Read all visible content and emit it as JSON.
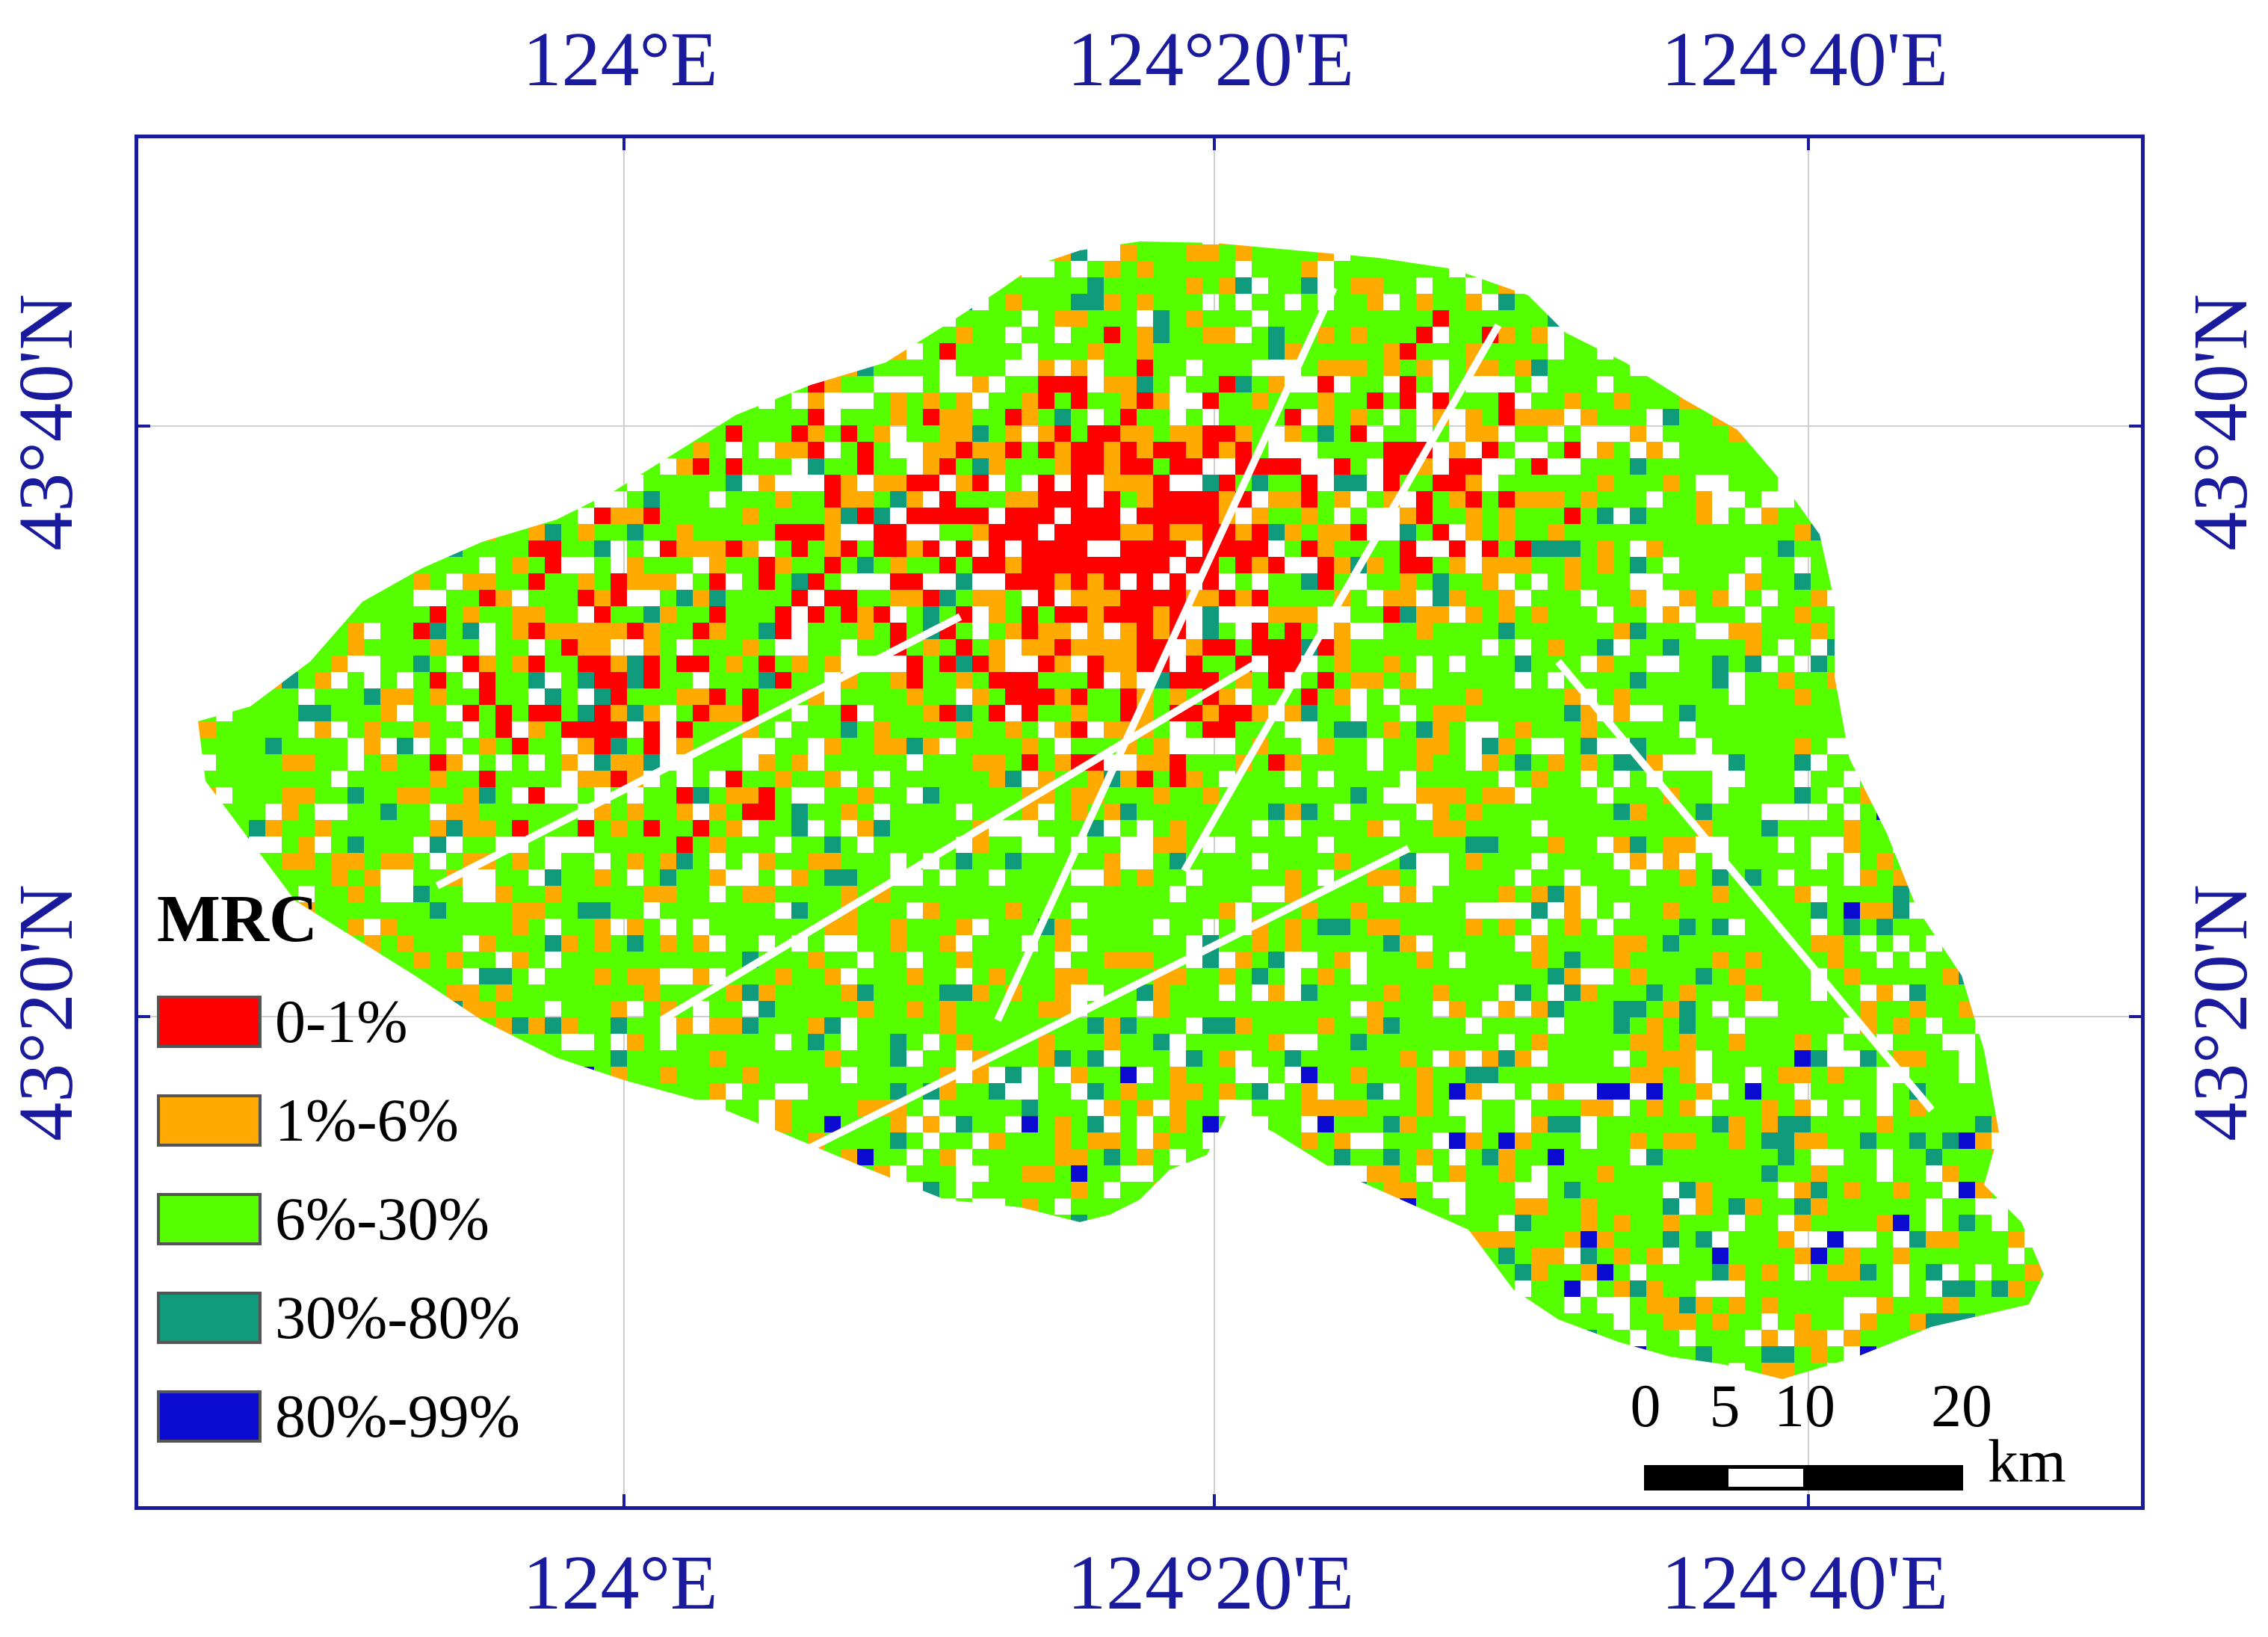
{
  "map": {
    "longitude_labels": [
      "124°E",
      "124°20'E",
      "124°40'E"
    ],
    "latitude_labels": [
      "43°40'N",
      "43°20'N"
    ],
    "legend": {
      "title": "MRC",
      "classes": [
        {
          "label": "0-1%",
          "color": "#ff0000"
        },
        {
          "label": "1%-6%",
          "color": "#ffaa00"
        },
        {
          "label": "6%-30%",
          "color": "#55ff00"
        },
        {
          "label": "30%-80%",
          "color": "#109c7c"
        },
        {
          "label": "80%-99%",
          "color": "#0a0ad0"
        }
      ]
    },
    "scale_bar": {
      "ticks": [
        "0",
        "5",
        "10",
        "20"
      ],
      "unit": "km"
    }
  }
}
